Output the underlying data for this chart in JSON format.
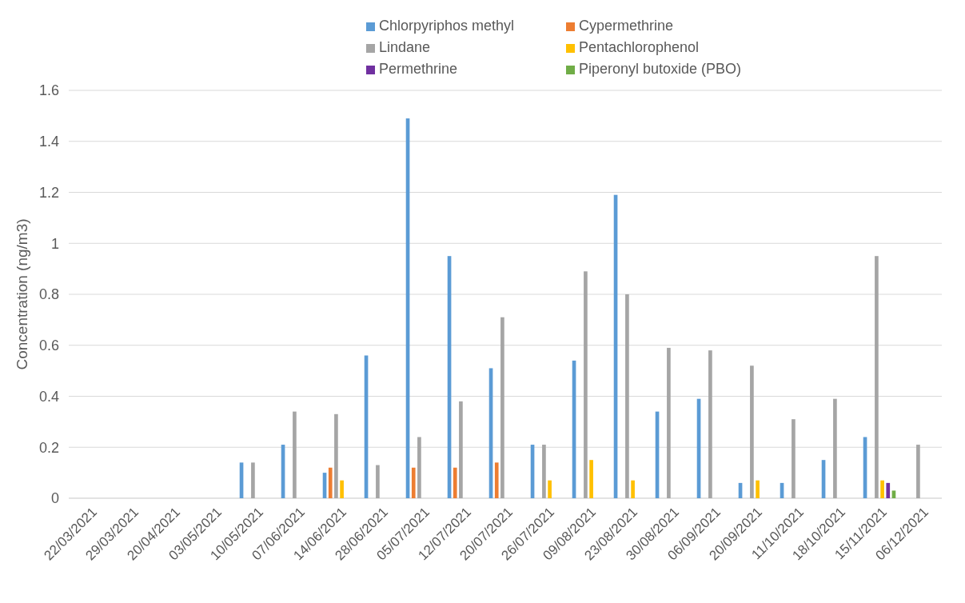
{
  "chart_data": {
    "type": "bar",
    "ylabel": "Concentration (ng/m3)",
    "categories": [
      "22/03/2021",
      "29/03/2021",
      "20/04/2021",
      "03/05/2021",
      "10/05/2021",
      "07/06/2021",
      "14/06/2021",
      "28/06/2021",
      "05/07/2021",
      "12/07/2021",
      "20/07/2021",
      "26/07/2021",
      "09/08/2021",
      "23/08/2021",
      "30/08/2021",
      "06/09/2021",
      "20/09/2021",
      "11/10/2021",
      "18/10/2021",
      "15/11/2021",
      "06/12/2021"
    ],
    "series": [
      {
        "name": "Chlorpyriphos methyl",
        "color": "#5b9bd5",
        "values": [
          null,
          null,
          null,
          null,
          0.14,
          0.21,
          0.1,
          0.56,
          1.49,
          0.95,
          0.51,
          0.21,
          0.54,
          1.19,
          0.34,
          0.39,
          0.06,
          0.06,
          0.15,
          0.24,
          null
        ]
      },
      {
        "name": "Cypermethrine",
        "color": "#ed7d31",
        "values": [
          null,
          null,
          null,
          null,
          null,
          null,
          0.12,
          null,
          0.12,
          0.12,
          0.14,
          null,
          null,
          null,
          null,
          null,
          null,
          null,
          null,
          null,
          null
        ]
      },
      {
        "name": "Lindane",
        "color": "#a5a5a5",
        "values": [
          null,
          null,
          null,
          null,
          0.14,
          0.34,
          0.33,
          0.13,
          0.24,
          0.38,
          0.71,
          0.21,
          0.89,
          0.8,
          0.59,
          0.58,
          0.52,
          0.31,
          0.39,
          0.95,
          0.21
        ]
      },
      {
        "name": "Pentachlorophenol",
        "color": "#ffc000",
        "values": [
          null,
          null,
          null,
          null,
          null,
          null,
          0.07,
          null,
          null,
          null,
          null,
          0.07,
          0.15,
          0.07,
          null,
          null,
          0.07,
          null,
          null,
          0.07,
          null
        ]
      },
      {
        "name": "Permethrine",
        "color": "#7030a0",
        "values": [
          null,
          null,
          null,
          null,
          null,
          null,
          null,
          null,
          null,
          null,
          null,
          null,
          null,
          null,
          null,
          null,
          null,
          null,
          null,
          0.06,
          null
        ]
      },
      {
        "name": "Piperonyl butoxide (PBO)",
        "color": "#70ad47",
        "values": [
          null,
          null,
          null,
          null,
          null,
          null,
          null,
          null,
          null,
          null,
          null,
          null,
          null,
          null,
          null,
          null,
          null,
          null,
          null,
          0.03,
          null
        ]
      }
    ],
    "ylim": [
      0,
      1.6
    ],
    "yticks": [
      0,
      0.2,
      0.4,
      0.6,
      0.8,
      1,
      1.2,
      1.4,
      1.6
    ],
    "grid": "y",
    "legend": "top"
  }
}
